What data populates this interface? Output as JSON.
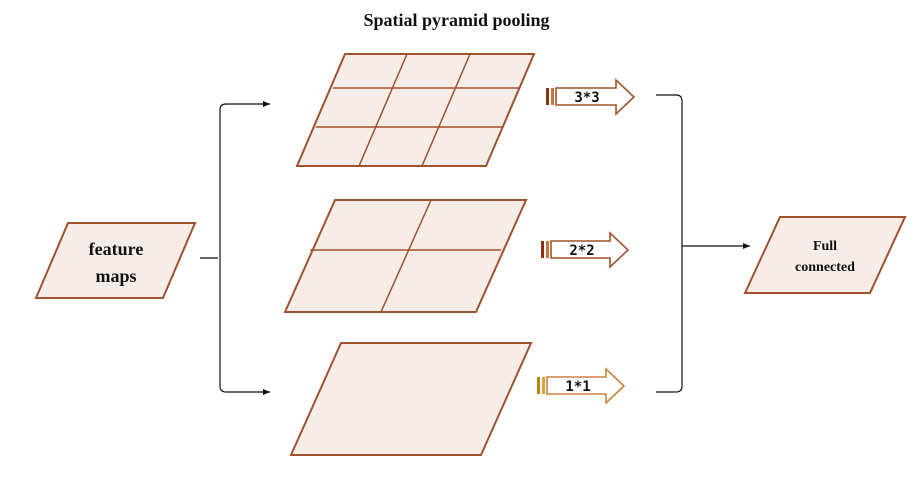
{
  "title": "Spatial pyramid pooling",
  "input_node": {
    "line1": "feature",
    "line2": "maps"
  },
  "output_node": {
    "line1": "Full",
    "line2": "connected"
  },
  "pyramid_levels": [
    {
      "label": "3*3",
      "rows": 3,
      "cols": 3
    },
    {
      "label": "2*2",
      "rows": 2,
      "cols": 2
    },
    {
      "label": "1*1",
      "rows": 1,
      "cols": 1
    }
  ],
  "colors": {
    "stroke": "#a0522d",
    "fill": "#f6ece8",
    "arrow_bar_dark": "#8b2f0f",
    "arrow_bar_light": "#c8763c",
    "arrow_bar_gold": "#b8860b",
    "connector": "#111111"
  }
}
